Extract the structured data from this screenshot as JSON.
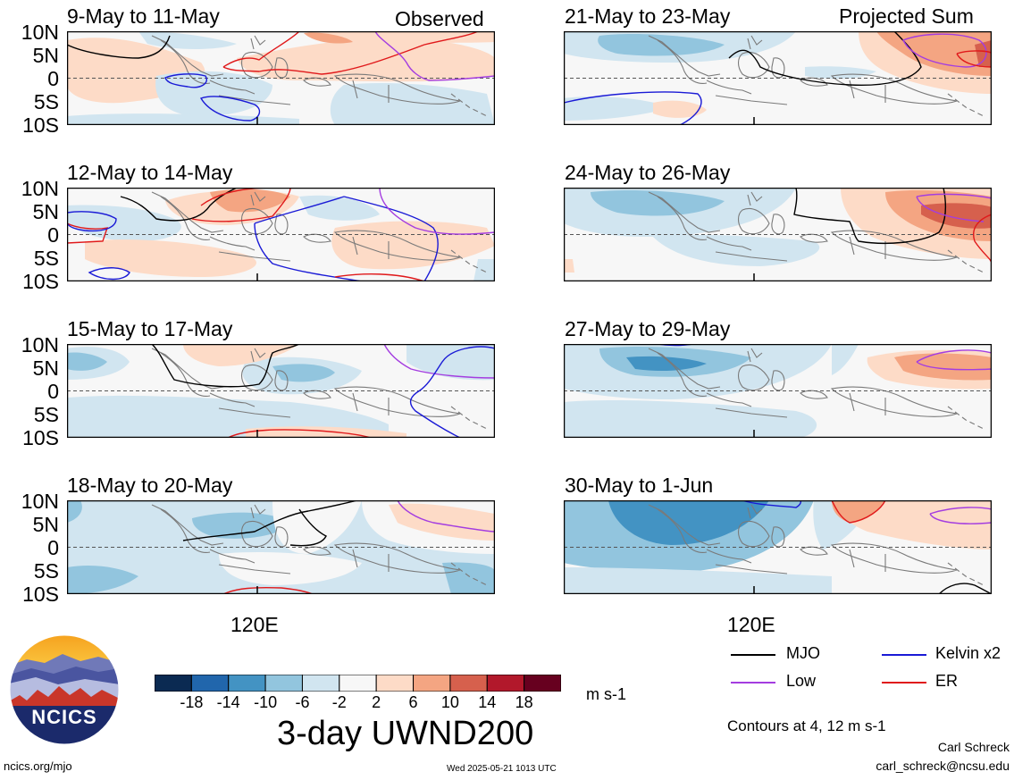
{
  "header": {
    "left_title": "Observed",
    "right_title": "Projected Sum"
  },
  "latitude_labels": [
    "10N",
    "5N",
    "0",
    "5S",
    "10S"
  ],
  "longitude_label": "120E",
  "panels": {
    "left": [
      "9-May to 11-May",
      "12-May to 14-May",
      "15-May to 17-May",
      "18-May to 20-May"
    ],
    "right": [
      "21-May to 23-May",
      "24-May to 26-May",
      "27-May to 29-May",
      "30-May to 1-Jun"
    ]
  },
  "colorbar": {
    "ticks": [
      "-18",
      "-14",
      "-10",
      "-6",
      "-2",
      "2",
      "6",
      "10",
      "14",
      "18"
    ],
    "colors": [
      "#0b2a52",
      "#2166ac",
      "#4393c3",
      "#92c5de",
      "#d1e5f0",
      "#f7f7f7",
      "#fddbc7",
      "#f4a582",
      "#d6604d",
      "#b2182b",
      "#67001f"
    ],
    "units": "m s-1",
    "title": "3-day UWND200"
  },
  "legend": {
    "items": [
      {
        "label": "MJO",
        "color": "#000000"
      },
      {
        "label": "Kelvin x2",
        "color": "#1a1ad6"
      },
      {
        "label": "Low",
        "color": "#a43de0"
      },
      {
        "label": "ER",
        "color": "#e0191b"
      }
    ],
    "contours_note": "Contours at 4, 12 m s-1"
  },
  "footer": {
    "logo_text": "NCICS",
    "website": "ncics.org/mjo",
    "timestamp": "Wed 2025-05-21 1013 UTC",
    "author": "Carl Schreck",
    "email": "carl_schreck@ncsu.edu"
  }
}
